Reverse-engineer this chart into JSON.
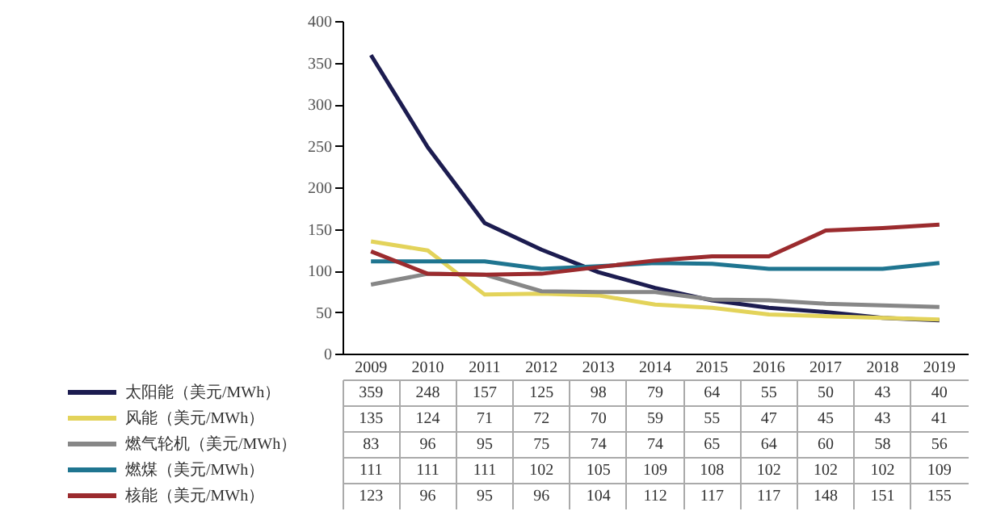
{
  "chart_data": {
    "type": "line",
    "categories": [
      "2009",
      "2010",
      "2011",
      "2012",
      "2013",
      "2014",
      "2015",
      "2016",
      "2017",
      "2018",
      "2019"
    ],
    "ylim": [
      0,
      400
    ],
    "yticks": [
      0,
      50,
      100,
      150,
      200,
      250,
      300,
      350,
      400
    ],
    "grid": false,
    "legend": "bottom",
    "data_labels": true,
    "marker": "none",
    "line_style": "solid",
    "series": [
      {
        "name": "太阳能（美元/MWh）",
        "color": "#1c1c50",
        "values": [
          359,
          248,
          157,
          125,
          98,
          79,
          64,
          55,
          50,
          43,
          40
        ]
      },
      {
        "name": "风能（美元/MWh）",
        "color": "#e3d35a",
        "values": [
          135,
          124,
          71,
          72,
          70,
          59,
          55,
          47,
          45,
          43,
          41
        ]
      },
      {
        "name": "燃气轮机（美元/MWh）",
        "color": "#878787",
        "values": [
          83,
          96,
          95,
          75,
          74,
          74,
          65,
          64,
          60,
          58,
          56
        ]
      },
      {
        "name": "燃煤（美元/MWh）",
        "color": "#1f7590",
        "values": [
          111,
          111,
          111,
          102,
          105,
          109,
          108,
          102,
          102,
          102,
          109
        ]
      },
      {
        "name": "核能（美元/MWh）",
        "color": "#9b2b2e",
        "values": [
          123,
          96,
          95,
          96,
          104,
          112,
          117,
          117,
          148,
          151,
          155
        ]
      }
    ]
  }
}
